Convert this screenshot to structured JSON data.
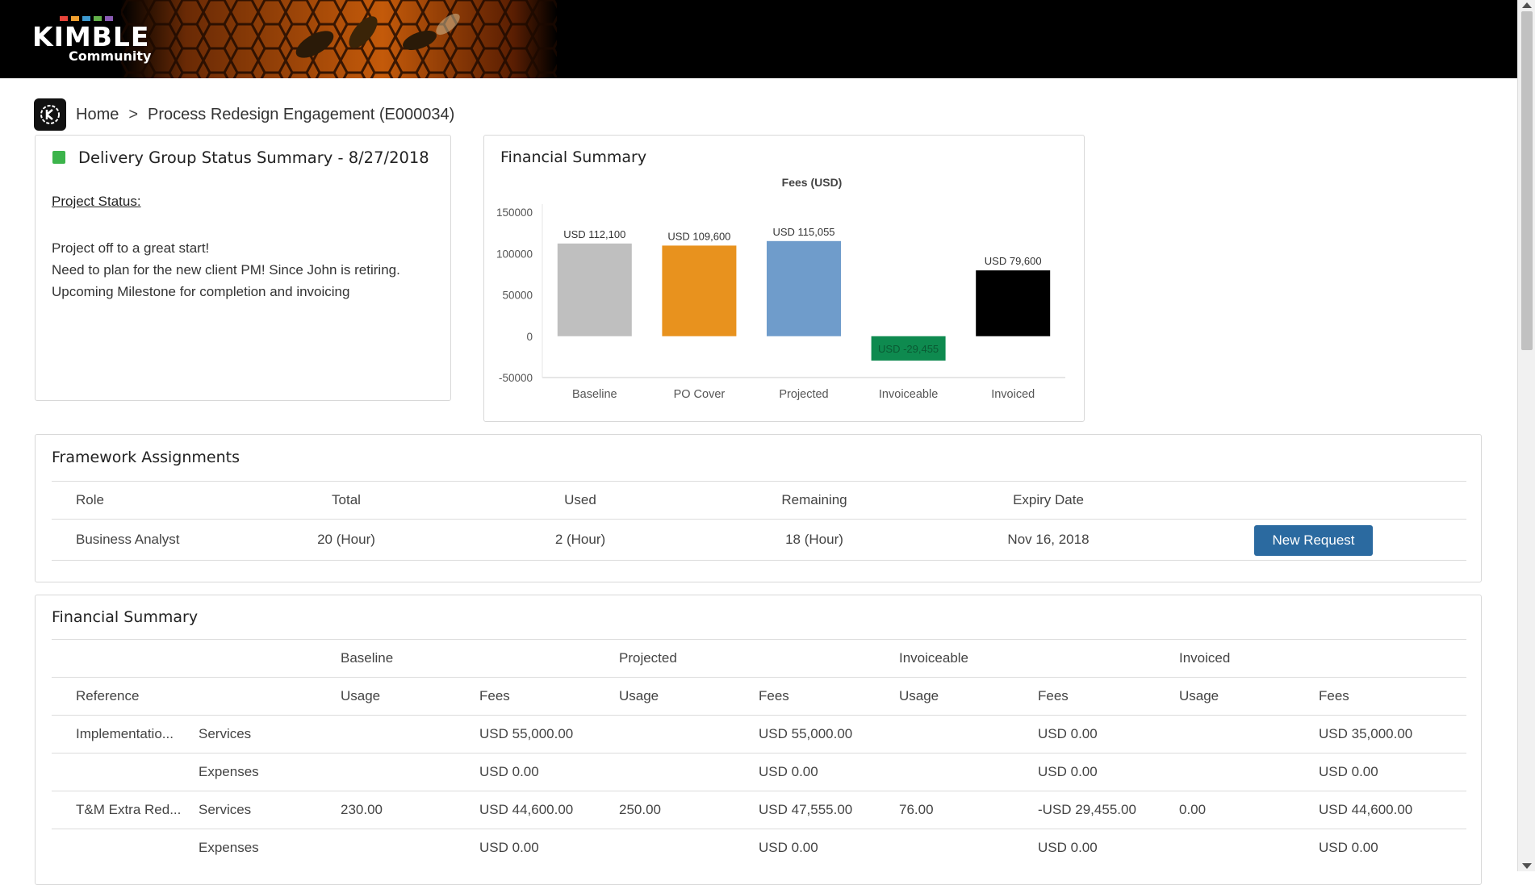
{
  "header": {
    "logo_text": "KIMBLE",
    "logo_subtitle": "Community",
    "logo_dot_colors": [
      "#e8443a",
      "#f2a02f",
      "#3d9ad1",
      "#63b14a",
      "#8a5bb5"
    ]
  },
  "breadcrumb": {
    "icon": "kimble-community-icon",
    "home": "Home",
    "separator": ">",
    "current": "Process Redesign Engagement (E000034)"
  },
  "status_card": {
    "title": "Delivery Group Status Summary - 8/27/2018",
    "status_color": "#3cb44b",
    "project_status_label": "Project Status:",
    "notes": [
      "Project off to a great start!",
      "Need to plan for the new client PM! Since John is retiring.",
      "Upcoming Milestone for completion and invoicing"
    ]
  },
  "chart_card": {
    "title": "Financial Summary"
  },
  "chart_data": {
    "type": "bar",
    "title": "Fees (USD)",
    "xlabel": "",
    "ylabel": "",
    "categories": [
      "Baseline",
      "PO Cover",
      "Projected",
      "Invoiceable",
      "Invoiced"
    ],
    "values": [
      112100,
      109600,
      115055,
      -29455,
      79600
    ],
    "data_labels": [
      "USD 112,100",
      "USD 109,600",
      "USD 115,055",
      "USD -29,455",
      "USD 79,600"
    ],
    "colors": [
      "#bfbfbf",
      "#e8921e",
      "#6f9ccb",
      "#0e8a4f",
      "#000000"
    ],
    "y_ticks": [
      150000,
      100000,
      50000,
      0,
      -50000
    ],
    "ylim": [
      -50000,
      150000
    ],
    "grid": false,
    "legend": "none"
  },
  "framework": {
    "title": "Framework Assignments",
    "headers": [
      "Role",
      "Total",
      "Used",
      "Remaining",
      "Expiry Date"
    ],
    "rows": [
      {
        "role": "Business Analyst",
        "total": "20 (Hour)",
        "used": "2 (Hour)",
        "remaining": "18 (Hour)",
        "expiry": "Nov 16, 2018",
        "action": "New Request"
      }
    ]
  },
  "financial_table": {
    "title": "Financial Summary",
    "groups": [
      "Baseline",
      "Projected",
      "Invoiceable",
      "Invoiced"
    ],
    "headers": [
      "Reference",
      "",
      "Usage",
      "Fees",
      "Usage",
      "Fees",
      "Usage",
      "Fees",
      "Usage",
      "Fees"
    ],
    "rows": [
      [
        "Implementatio...",
        "Services",
        "",
        "USD 55,000.00",
        "",
        "USD 55,000.00",
        "",
        "USD 0.00",
        "",
        "USD 35,000.00"
      ],
      [
        "",
        "Expenses",
        "",
        "USD 0.00",
        "",
        "USD 0.00",
        "",
        "USD 0.00",
        "",
        "USD 0.00"
      ],
      [
        "T&M Extra Red...",
        "Services",
        "230.00",
        "USD 44,600.00",
        "250.00",
        "USD 47,555.00",
        "76.00",
        "-USD 29,455.00",
        "0.00",
        "USD 44,600.00"
      ],
      [
        "",
        "Expenses",
        "",
        "USD 0.00",
        "",
        "USD 0.00",
        "",
        "USD 0.00",
        "",
        "USD 0.00"
      ]
    ]
  }
}
